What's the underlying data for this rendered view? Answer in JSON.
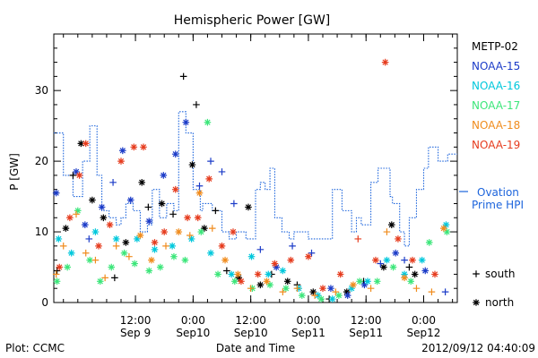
{
  "chart_data": {
    "type": "scatter",
    "title": "Hemispheric Power [GW]",
    "ylabel": "P [GW]",
    "xlabel": "Date and Time",
    "ylim": [
      0,
      38
    ],
    "xlim": [
      "2012-09-08T19:00",
      "2012-09-12T07:00"
    ],
    "y_ticks": [
      0,
      10,
      20,
      30
    ],
    "x_ticks": [
      {
        "t": "2012-09-09T12:00",
        "top": "12:00",
        "bottom": "Sep 9"
      },
      {
        "t": "2012-09-10T00:00",
        "top": "0:00",
        "bottom": "Sep10"
      },
      {
        "t": "2012-09-10T12:00",
        "top": "12:00",
        "bottom": "Sep10"
      },
      {
        "t": "2012-09-11T00:00",
        "top": "0:00",
        "bottom": "Sep11"
      },
      {
        "t": "2012-09-11T12:00",
        "top": "12:00",
        "bottom": "Sep11"
      },
      {
        "t": "2012-09-12T00:00",
        "top": "0:00",
        "bottom": "Sep12"
      }
    ],
    "series": [
      {
        "name": "METP-02",
        "color": "#000000",
        "points": [
          [
            "09-08T19:40",
            4.5,
            "+"
          ],
          [
            "09-08T21:30",
            10.5,
            "*"
          ],
          [
            "09-08T23:00",
            18,
            "+"
          ],
          [
            "09-09T00:40",
            22.5,
            "*"
          ],
          [
            "09-09T03:00",
            14.5,
            "*"
          ],
          [
            "09-09T05:20",
            12,
            "*"
          ],
          [
            "09-09T07:40",
            3.5,
            "+"
          ],
          [
            "09-09T10:00",
            8.5,
            "*"
          ],
          [
            "09-09T13:20",
            17,
            "*"
          ],
          [
            "09-09T14:40",
            13.5,
            "+"
          ],
          [
            "09-09T17:30",
            14,
            "*"
          ],
          [
            "09-09T19:50",
            12.5,
            "+"
          ],
          [
            "09-09T22:00",
            32,
            "+"
          ],
          [
            "09-09T23:50",
            19.5,
            "*"
          ],
          [
            "09-10T00:40",
            28,
            "+"
          ],
          [
            "09-10T02:20",
            10.5,
            "*"
          ],
          [
            "09-10T04:40",
            13,
            "+"
          ],
          [
            "09-10T07:00",
            4.5,
            "+"
          ],
          [
            "09-10T09:30",
            3.5,
            "*"
          ],
          [
            "09-10T11:30",
            13.5,
            "*"
          ],
          [
            "09-10T14:00",
            2.5,
            "*"
          ],
          [
            "09-10T16:20",
            4,
            "+"
          ],
          [
            "09-10T19:40",
            3,
            "*"
          ],
          [
            "09-10T21:40",
            2.5,
            "+"
          ],
          [
            "09-11T01:00",
            1.5,
            "*"
          ],
          [
            "09-11T04:20",
            0.5,
            "+"
          ],
          [
            "09-11T08:00",
            1.5,
            "*"
          ],
          [
            "09-11T11:30",
            3,
            "+"
          ],
          [
            "09-11T15:40",
            5,
            "*"
          ],
          [
            "09-11T17:20",
            11,
            "*"
          ],
          [
            "09-11T21:00",
            5,
            "+"
          ],
          [
            "09-11T22:10",
            4,
            "*"
          ]
        ]
      },
      {
        "name": "NOAA-15",
        "color": "#1c3cc8",
        "points": [
          [
            "09-08T19:30",
            15.5,
            "*"
          ],
          [
            "09-08T23:40",
            18.5,
            "*"
          ],
          [
            "09-09T01:30",
            11,
            "*"
          ],
          [
            "09-09T02:20",
            9,
            "+"
          ],
          [
            "09-09T05:00",
            13.5,
            "*"
          ],
          [
            "09-09T07:20",
            17,
            "+"
          ],
          [
            "09-09T09:20",
            21.5,
            "*"
          ],
          [
            "09-09T11:00",
            14.5,
            "*"
          ],
          [
            "09-09T14:50",
            11.5,
            "*"
          ],
          [
            "09-09T17:50",
            18,
            "*"
          ],
          [
            "09-09T20:20",
            21,
            "*"
          ],
          [
            "09-09T22:30",
            25.5,
            "*"
          ],
          [
            "09-10T01:20",
            16.5,
            "+"
          ],
          [
            "09-10T03:40",
            20,
            "+"
          ],
          [
            "09-10T06:00",
            18.5,
            "+"
          ],
          [
            "09-10T08:30",
            14,
            "+"
          ],
          [
            "09-10T14:00",
            7.5,
            "+"
          ],
          [
            "09-10T17:20",
            5,
            "*"
          ],
          [
            "09-10T20:40",
            8,
            "+"
          ],
          [
            "09-11T00:40",
            7,
            "+"
          ],
          [
            "09-11T04:40",
            2,
            "*"
          ],
          [
            "09-11T08:10",
            1,
            "*"
          ],
          [
            "09-11T11:40",
            2.5,
            "*"
          ],
          [
            "09-11T15:00",
            5.5,
            "+"
          ],
          [
            "09-11T18:10",
            7,
            "*"
          ],
          [
            "09-11T20:00",
            6,
            "+"
          ],
          [
            "09-12T00:20",
            4.5,
            "*"
          ],
          [
            "09-12T04:30",
            1.5,
            "+"
          ]
        ]
      },
      {
        "name": "NOAA-16",
        "color": "#00c8dc",
        "points": [
          [
            "09-08T20:00",
            9,
            "*"
          ],
          [
            "09-08T22:40",
            7,
            "*"
          ],
          [
            "09-09T03:40",
            10,
            "*"
          ],
          [
            "09-09T08:00",
            9,
            "*"
          ],
          [
            "09-09T12:20",
            9,
            "*"
          ],
          [
            "09-09T16:00",
            7.5,
            "*"
          ],
          [
            "09-09T19:40",
            8,
            "*"
          ],
          [
            "09-09T23:40",
            9,
            "*"
          ],
          [
            "09-10T03:40",
            7,
            "*"
          ],
          [
            "09-10T08:00",
            4,
            "*"
          ],
          [
            "09-10T12:10",
            6.5,
            "*"
          ],
          [
            "09-10T15:40",
            4,
            "*"
          ],
          [
            "09-10T18:40",
            4.5,
            "*"
          ],
          [
            "09-10T22:00",
            2,
            "*"
          ],
          [
            "09-11T02:00",
            1,
            "*"
          ],
          [
            "09-11T05:00",
            0.5,
            "*"
          ],
          [
            "09-11T09:00",
            2,
            "*"
          ],
          [
            "09-11T12:20",
            3,
            "*"
          ],
          [
            "09-11T16:20",
            6,
            "*"
          ],
          [
            "09-11T20:00",
            4,
            "*"
          ],
          [
            "09-11T23:40",
            6,
            "*"
          ],
          [
            "09-12T04:40",
            11,
            "*"
          ]
        ]
      },
      {
        "name": "NOAA-17",
        "color": "#3ce67a",
        "points": [
          [
            "09-08T19:40",
            3,
            "*"
          ],
          [
            "09-08T21:50",
            5,
            "*"
          ],
          [
            "09-09T00:00",
            13,
            "*"
          ],
          [
            "09-09T02:30",
            6,
            "*"
          ],
          [
            "09-09T04:40",
            3,
            "*"
          ],
          [
            "09-09T07:00",
            5,
            "*"
          ],
          [
            "09-09T09:40",
            7,
            "*"
          ],
          [
            "09-09T11:50",
            5.5,
            "*"
          ],
          [
            "09-09T14:50",
            4.5,
            "*"
          ],
          [
            "09-09T17:10",
            5,
            "*"
          ],
          [
            "09-09T20:00",
            6.5,
            "*"
          ],
          [
            "09-09T22:20",
            6,
            "*"
          ],
          [
            "09-10T01:40",
            10,
            "*"
          ],
          [
            "09-10T03:00",
            25.5,
            "*"
          ],
          [
            "09-10T05:10",
            4,
            "*"
          ],
          [
            "09-10T08:40",
            3,
            "*"
          ],
          [
            "09-10T12:20",
            2,
            "*"
          ],
          [
            "09-10T16:00",
            2.5,
            "*"
          ],
          [
            "09-10T19:20",
            2,
            "*"
          ],
          [
            "09-10T22:40",
            1,
            "*"
          ],
          [
            "09-11T02:40",
            0.5,
            "*"
          ],
          [
            "09-11T06:20",
            1,
            "*"
          ],
          [
            "09-11T10:40",
            3,
            "*"
          ],
          [
            "09-11T14:20",
            3,
            "*"
          ],
          [
            "09-11T17:40",
            5,
            "*"
          ],
          [
            "09-11T21:20",
            3,
            "*"
          ],
          [
            "09-12T01:10",
            8.5,
            "*"
          ],
          [
            "09-12T04:50",
            10,
            "*"
          ]
        ]
      },
      {
        "name": "NOAA-18",
        "color": "#f08c1e",
        "points": [
          [
            "09-08T19:30",
            4,
            "+"
          ],
          [
            "09-08T21:00",
            8,
            "+"
          ],
          [
            "09-08T23:40",
            12.5,
            "+"
          ],
          [
            "09-09T01:40",
            7,
            "+"
          ],
          [
            "09-09T03:40",
            6,
            "+"
          ],
          [
            "09-09T05:40",
            3.5,
            "+"
          ],
          [
            "09-09T08:00",
            8,
            "+"
          ],
          [
            "09-09T10:40",
            6.5,
            "+"
          ],
          [
            "09-09T13:00",
            9.5,
            "*"
          ],
          [
            "09-09T15:20",
            6,
            "*"
          ],
          [
            "09-09T18:20",
            8,
            "+"
          ],
          [
            "09-09T21:00",
            10,
            "*"
          ],
          [
            "09-09T23:20",
            9.5,
            "+"
          ],
          [
            "09-10T01:20",
            15.5,
            "*"
          ],
          [
            "09-10T04:00",
            10.5,
            "+"
          ],
          [
            "09-10T06:40",
            6,
            "*"
          ],
          [
            "09-10T09:20",
            4,
            "*"
          ],
          [
            "09-10T12:00",
            2,
            "+"
          ],
          [
            "09-10T15:20",
            3,
            "*"
          ],
          [
            "09-10T18:40",
            1.5,
            "+"
          ],
          [
            "09-10T21:40",
            2,
            "+"
          ],
          [
            "09-11T01:20",
            1,
            "+"
          ],
          [
            "09-11T05:40",
            1.5,
            "+"
          ],
          [
            "09-11T09:20",
            2.5,
            "*"
          ],
          [
            "09-11T13:00",
            2,
            "+"
          ],
          [
            "09-11T16:20",
            10,
            "+"
          ],
          [
            "09-11T20:00",
            3.5,
            "*"
          ],
          [
            "09-11T22:30",
            2,
            "+"
          ],
          [
            "09-12T01:40",
            1.5,
            "+"
          ],
          [
            "09-12T04:10",
            10.5,
            "*"
          ]
        ]
      },
      {
        "name": "NOAA-19",
        "color": "#e63c1e",
        "points": [
          [
            "09-08T20:10",
            5,
            "*"
          ],
          [
            "09-08T22:20",
            12,
            "*"
          ],
          [
            "09-09T00:20",
            18,
            "*"
          ],
          [
            "09-09T01:40",
            22.5,
            "*"
          ],
          [
            "09-09T04:20",
            8,
            "*"
          ],
          [
            "09-09T06:40",
            11,
            "*"
          ],
          [
            "09-09T09:00",
            20,
            "*"
          ],
          [
            "09-09T11:40",
            22,
            "*"
          ],
          [
            "09-09T13:40",
            22,
            "*"
          ],
          [
            "09-09T16:00",
            8.5,
            "*"
          ],
          [
            "09-09T18:00",
            10,
            "*"
          ],
          [
            "09-09T20:20",
            16,
            "*"
          ],
          [
            "09-09T22:50",
            12,
            "*"
          ],
          [
            "09-10T01:00",
            12,
            "*"
          ],
          [
            "09-10T03:20",
            17.5,
            "*"
          ],
          [
            "09-10T06:00",
            8,
            "*"
          ],
          [
            "09-10T08:20",
            10,
            "*"
          ],
          [
            "09-10T10:00",
            3,
            "*"
          ],
          [
            "09-10T13:30",
            4,
            "*"
          ],
          [
            "09-10T17:00",
            5.5,
            "*"
          ],
          [
            "09-10T20:20",
            6,
            "*"
          ],
          [
            "09-11T00:00",
            6.5,
            "*"
          ],
          [
            "09-11T03:00",
            2,
            "*"
          ],
          [
            "09-11T06:40",
            4,
            "*"
          ],
          [
            "09-11T10:20",
            9,
            "+"
          ],
          [
            "09-11T14:00",
            6,
            "*"
          ],
          [
            "09-11T16:00",
            34,
            "*"
          ],
          [
            "09-11T18:40",
            9,
            "*"
          ],
          [
            "09-11T21:40",
            6,
            "*"
          ],
          [
            "09-12T02:20",
            4,
            "*"
          ]
        ]
      }
    ],
    "ovation": {
      "name_line1": "Ovation",
      "name_line2": "Prime HPI",
      "color": "#1c64dc",
      "steps": [
        [
          "09-08T19:00",
          24
        ],
        [
          "09-08T21:00",
          18
        ],
        [
          "09-08T23:00",
          15
        ],
        [
          "09-09T01:00",
          20
        ],
        [
          "09-09T02:30",
          25
        ],
        [
          "09-09T04:00",
          18
        ],
        [
          "09-09T05:00",
          13
        ],
        [
          "09-09T06:30",
          12
        ],
        [
          "09-09T08:00",
          11
        ],
        [
          "09-09T09:00",
          12
        ],
        [
          "09-09T10:00",
          14
        ],
        [
          "09-09T11:30",
          13
        ],
        [
          "09-09T13:00",
          10
        ],
        [
          "09-09T14:30",
          11
        ],
        [
          "09-09T15:30",
          16
        ],
        [
          "09-09T17:00",
          12
        ],
        [
          "09-09T18:30",
          14
        ],
        [
          "09-09T20:00",
          13
        ],
        [
          "09-09T21:00",
          27
        ],
        [
          "09-09T22:30",
          24
        ],
        [
          "09-10T00:00",
          16
        ],
        [
          "09-10T01:30",
          13
        ],
        [
          "09-10T02:00",
          14
        ],
        [
          "09-10T04:00",
          13
        ],
        [
          "09-10T06:00",
          10
        ],
        [
          "09-10T07:30",
          9
        ],
        [
          "09-10T09:00",
          10
        ],
        [
          "09-10T11:00",
          9
        ],
        [
          "09-10T13:00",
          16
        ],
        [
          "09-10T14:00",
          17
        ],
        [
          "09-10T15:00",
          16
        ],
        [
          "09-10T16:00",
          19
        ],
        [
          "09-10T17:00",
          12
        ],
        [
          "09-10T18:30",
          10
        ],
        [
          "09-10T20:00",
          9
        ],
        [
          "09-10T21:00",
          10
        ],
        [
          "09-11T00:00",
          9
        ],
        [
          "09-11T05:00",
          16
        ],
        [
          "09-11T07:00",
          13
        ],
        [
          "09-11T09:00",
          10
        ],
        [
          "09-11T10:00",
          12
        ],
        [
          "09-11T11:00",
          11
        ],
        [
          "09-11T13:00",
          17
        ],
        [
          "09-11T14:30",
          19
        ],
        [
          "09-11T17:00",
          15
        ],
        [
          "09-11T17:30",
          14
        ],
        [
          "09-11T19:00",
          10
        ],
        [
          "09-11T20:00",
          8
        ],
        [
          "09-11T21:00",
          12
        ],
        [
          "09-11T22:30",
          16
        ],
        [
          "09-12T00:00",
          19
        ],
        [
          "09-12T01:00",
          22
        ],
        [
          "09-12T03:00",
          20
        ],
        [
          "09-12T05:00",
          21
        ],
        [
          "09-12T07:00",
          21
        ]
      ]
    },
    "marker_legend": [
      {
        "symbol": "+",
        "label": "south"
      },
      {
        "symbol": "*",
        "label": "north"
      }
    ],
    "grid": false,
    "legend_position": "right"
  },
  "footer": {
    "left": "Plot: CCMC",
    "right": "2012/09/12 04:40:09"
  },
  "colors": {
    "axis": "#000000",
    "background": "#ffffff"
  }
}
